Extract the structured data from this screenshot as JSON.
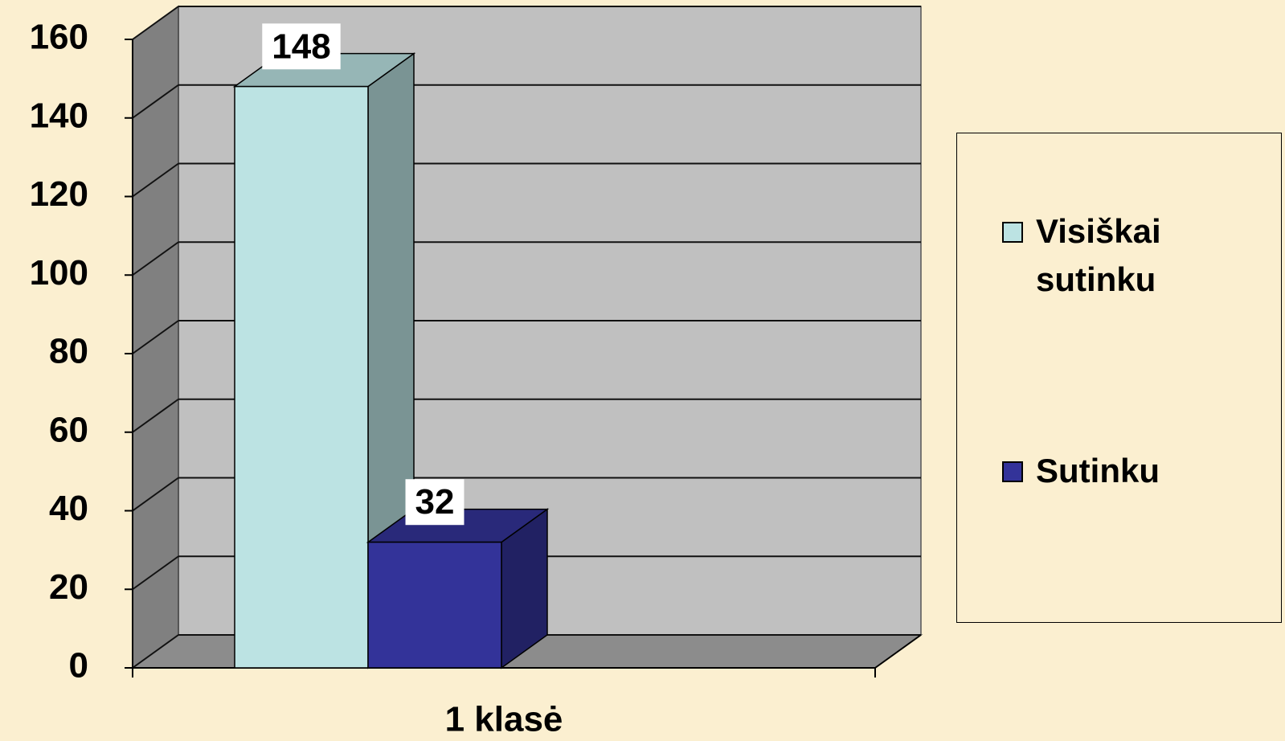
{
  "chart_data": {
    "type": "bar",
    "categories": [
      "1 klasė"
    ],
    "series": [
      {
        "name": "Visiškai sutinku",
        "color": "#bce3e3",
        "values": [
          148
        ]
      },
      {
        "name": "Sutinku",
        "color": "#333399",
        "values": [
          32
        ]
      }
    ],
    "ylim": [
      0,
      160
    ],
    "yticks": [
      0,
      20,
      40,
      60,
      80,
      100,
      120,
      140,
      160
    ],
    "grid": true,
    "legend": "right"
  }
}
